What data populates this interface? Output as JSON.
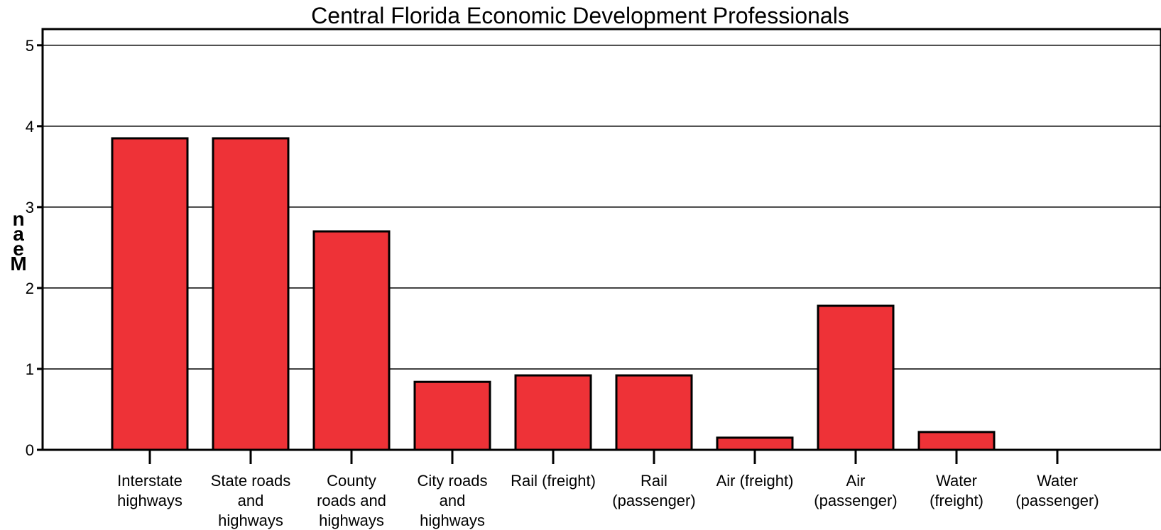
{
  "chart_data": {
    "type": "bar",
    "title": "Central Florida Economic Development Professionals",
    "ylabel": "Mean",
    "xlabel": "",
    "ylim": [
      0,
      5.2
    ],
    "yticks": [
      "0",
      "1",
      "2",
      "3",
      "4",
      "5"
    ],
    "grid": true,
    "bar_color": "#ee3237",
    "categories": [
      [
        "Interstate",
        "highways"
      ],
      [
        "State roads",
        "and",
        "highways"
      ],
      [
        "County",
        "roads and",
        "highways"
      ],
      [
        "City roads",
        "and",
        "highways"
      ],
      [
        "Rail (freight)"
      ],
      [
        "Rail",
        "(passenger)"
      ],
      [
        "Air (freight)"
      ],
      [
        "Air",
        "(passenger)"
      ],
      [
        "Water",
        "(freight)"
      ],
      [
        "Water",
        "(passenger)"
      ]
    ],
    "values": [
      3.85,
      3.85,
      2.7,
      0.84,
      0.92,
      0.92,
      0.15,
      1.78,
      0.22,
      0.0
    ]
  }
}
